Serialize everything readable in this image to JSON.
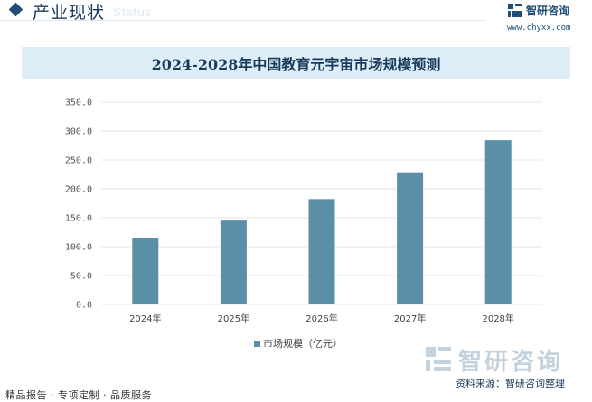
{
  "header": {
    "section_title": "产业现状",
    "ghost_text": "Status",
    "brand_name": "智研咨询",
    "brand_url": "www.chyxx.com"
  },
  "chart_data": {
    "type": "bar",
    "title": "2024-2028年中国教育元宇宙市场规模预测",
    "categories": [
      "2024年",
      "2025年",
      "2026年",
      "2027年",
      "2028年"
    ],
    "series": [
      {
        "name": "市场规模（亿元）",
        "values": [
          115.3,
          145.1,
          182.3,
          228.6,
          284.2
        ]
      }
    ],
    "ylim": [
      0,
      350
    ],
    "yticks": [
      "0.0",
      "50.0",
      "100.0",
      "150.0",
      "200.0",
      "250.0",
      "300.0",
      "350.0"
    ],
    "grid": true,
    "legend_position": "bottom",
    "bar_color": "#5b8fa8",
    "grid_color": "#e6e6e6"
  },
  "watermark": {
    "name": "智研咨询"
  },
  "source": "资料来源：智研咨询整理",
  "footer": "精品报告 · 专项定制 · 品质服务"
}
